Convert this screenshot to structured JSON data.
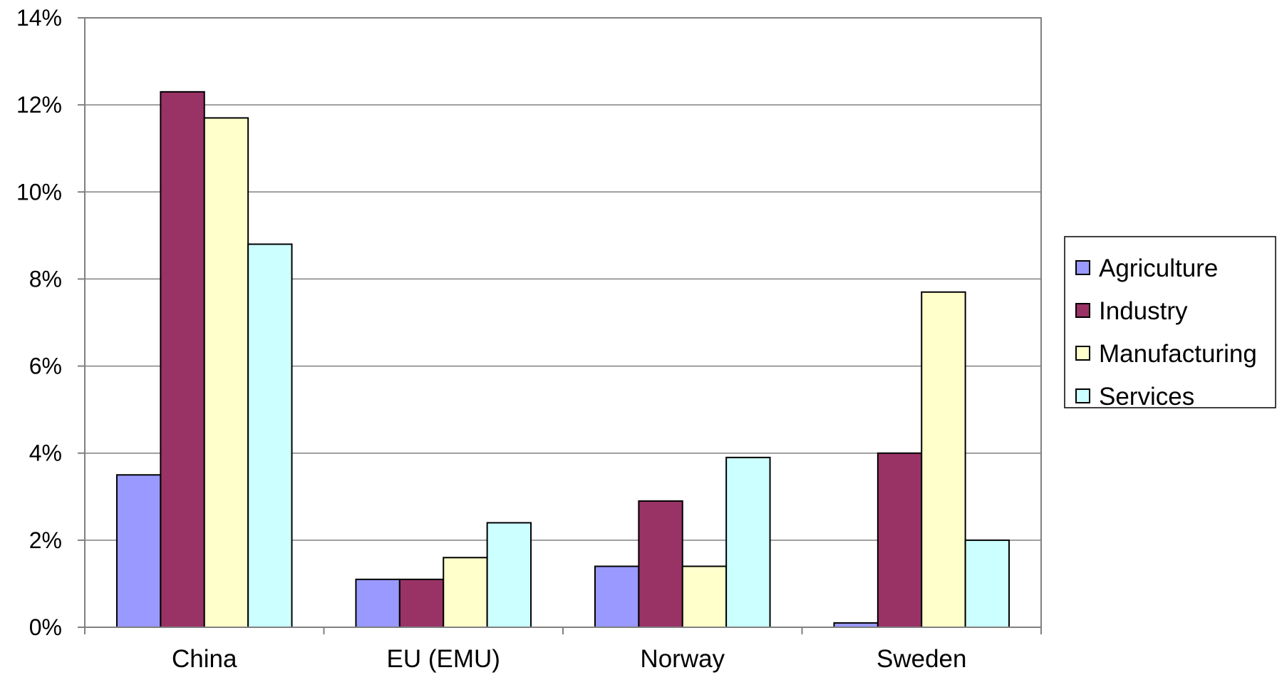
{
  "chart_data": {
    "type": "bar",
    "categories": [
      "China",
      "EU (EMU)",
      "Norway",
      "Sweden"
    ],
    "series": [
      {
        "name": "Agriculture",
        "color": "#9999ff",
        "values": [
          3.5,
          1.1,
          1.4,
          0.1
        ]
      },
      {
        "name": "Industry",
        "color": "#993366",
        "values": [
          12.3,
          1.1,
          2.9,
          4.0
        ]
      },
      {
        "name": "Manufacturing",
        "color": "#ffffcc",
        "values": [
          11.7,
          1.6,
          1.4,
          7.7
        ]
      },
      {
        "name": "Services",
        "color": "#ccffff",
        "values": [
          8.8,
          2.4,
          3.9,
          2.0
        ]
      }
    ],
    "ylim": [
      0,
      14
    ],
    "yticks": [
      "0%",
      "2%",
      "4%",
      "6%",
      "8%",
      "10%",
      "12%",
      "14%"
    ],
    "grid": true,
    "legend_position": "right"
  }
}
